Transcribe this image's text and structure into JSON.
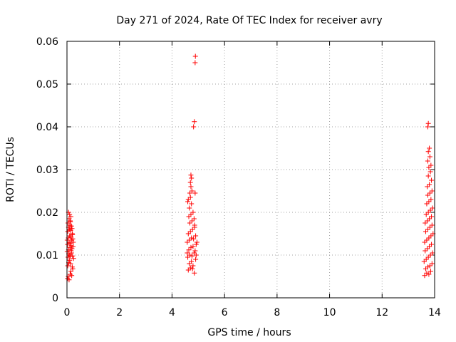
{
  "chart_data": {
    "type": "scatter",
    "title": "Day 271 of 2024, Rate Of TEC Index for receiver avry",
    "xlabel": "GPS time / hours",
    "ylabel": "ROTI / TECUs",
    "xlim": [
      0,
      14
    ],
    "ylim": [
      0,
      0.06
    ],
    "xticks": [
      0,
      2,
      4,
      6,
      8,
      10,
      12,
      14
    ],
    "xtick_labels": [
      "0",
      "2",
      "4",
      "6",
      "8",
      "10",
      "12",
      "14"
    ],
    "yticks": [
      0,
      0.01,
      0.02,
      0.03,
      0.04,
      0.05,
      0.06
    ],
    "ytick_labels": [
      "0",
      "0.01",
      "0.02",
      "0.03",
      "0.04",
      "0.05",
      "0.06"
    ],
    "grid": true,
    "marker": "+",
    "color": "#ff0000",
    "series": [
      {
        "points": [
          [
            0.02,
            0.0045
          ],
          [
            0.05,
            0.005
          ],
          [
            0.08,
            0.0042
          ],
          [
            0.12,
            0.0055
          ],
          [
            0.18,
            0.0052
          ],
          [
            0.15,
            0.0062
          ],
          [
            0.03,
            0.0075
          ],
          [
            0.07,
            0.0082
          ],
          [
            0.1,
            0.0088
          ],
          [
            0.14,
            0.008
          ],
          [
            0.2,
            0.0072
          ],
          [
            0.22,
            0.0068
          ],
          [
            0.04,
            0.0095
          ],
          [
            0.09,
            0.01
          ],
          [
            0.13,
            0.0097
          ],
          [
            0.17,
            0.0105
          ],
          [
            0.21,
            0.0098
          ],
          [
            0.01,
            0.0108
          ],
          [
            0.06,
            0.0112
          ],
          [
            0.11,
            0.0118
          ],
          [
            0.16,
            0.011
          ],
          [
            0.19,
            0.0115
          ],
          [
            0.23,
            0.012
          ],
          [
            0.02,
            0.0125
          ],
          [
            0.08,
            0.013
          ],
          [
            0.12,
            0.0128
          ],
          [
            0.18,
            0.0135
          ],
          [
            0.22,
            0.0138
          ],
          [
            0.05,
            0.014
          ],
          [
            0.1,
            0.0145
          ],
          [
            0.15,
            0.0142
          ],
          [
            0.2,
            0.015
          ],
          [
            0.03,
            0.0155
          ],
          [
            0.09,
            0.016
          ],
          [
            0.14,
            0.0158
          ],
          [
            0.21,
            0.0148
          ],
          [
            0.06,
            0.0165
          ],
          [
            0.11,
            0.017
          ],
          [
            0.17,
            0.0168
          ],
          [
            0.04,
            0.0175
          ],
          [
            0.12,
            0.018
          ],
          [
            0.08,
            0.0185
          ],
          [
            0.15,
            0.019
          ],
          [
            0.1,
            0.0195
          ],
          [
            0.06,
            0.02
          ],
          [
            0.13,
            0.0178
          ],
          [
            0.19,
            0.0162
          ],
          [
            0.24,
            0.013
          ],
          [
            0.01,
            0.0135
          ],
          [
            0.16,
            0.0122
          ],
          [
            0.07,
            0.0103
          ],
          [
            0.25,
            0.0092
          ]
        ]
      },
      {
        "points": [
          [
            4.62,
            0.0065
          ],
          [
            4.7,
            0.007
          ],
          [
            4.78,
            0.0068
          ],
          [
            4.85,
            0.0058
          ],
          [
            4.8,
            0.0075
          ],
          [
            4.66,
            0.008
          ],
          [
            4.74,
            0.0085
          ],
          [
            4.9,
            0.009
          ],
          [
            4.6,
            0.0095
          ],
          [
            4.68,
            0.01
          ],
          [
            4.76,
            0.0098
          ],
          [
            4.84,
            0.0105
          ],
          [
            4.88,
            0.011
          ],
          [
            4.64,
            0.0112
          ],
          [
            4.72,
            0.0118
          ],
          [
            4.8,
            0.012
          ],
          [
            4.92,
            0.0125
          ],
          [
            4.58,
            0.013
          ],
          [
            4.66,
            0.0135
          ],
          [
            4.74,
            0.014
          ],
          [
            4.82,
            0.0138
          ],
          [
            4.9,
            0.0145
          ],
          [
            4.62,
            0.015
          ],
          [
            4.7,
            0.0155
          ],
          [
            4.78,
            0.016
          ],
          [
            4.86,
            0.0165
          ],
          [
            4.68,
            0.0175
          ],
          [
            4.76,
            0.018
          ],
          [
            4.84,
            0.0185
          ],
          [
            4.64,
            0.019
          ],
          [
            4.72,
            0.0195
          ],
          [
            4.8,
            0.02
          ],
          [
            4.66,
            0.021
          ],
          [
            4.74,
            0.022
          ],
          [
            4.62,
            0.023
          ],
          [
            4.7,
            0.0235
          ],
          [
            4.68,
            0.0245
          ],
          [
            4.76,
            0.025
          ],
          [
            4.72,
            0.026
          ],
          [
            4.7,
            0.027
          ],
          [
            4.74,
            0.028
          ],
          [
            4.72,
            0.0287
          ],
          [
            4.88,
            0.0245
          ],
          [
            4.6,
            0.0225
          ],
          [
            4.86,
            0.017
          ],
          [
            4.92,
            0.01
          ],
          [
            4.58,
            0.0105
          ],
          [
            4.95,
            0.013
          ],
          [
            4.82,
            0.04
          ],
          [
            4.85,
            0.0412
          ],
          [
            4.88,
            0.055
          ],
          [
            4.89,
            0.0565
          ]
        ]
      },
      {
        "points": [
          [
            13.62,
            0.0052
          ],
          [
            13.7,
            0.0058
          ],
          [
            13.78,
            0.0055
          ],
          [
            13.85,
            0.0062
          ],
          [
            13.66,
            0.0068
          ],
          [
            13.74,
            0.0072
          ],
          [
            13.82,
            0.0075
          ],
          [
            13.9,
            0.008
          ],
          [
            13.6,
            0.0085
          ],
          [
            13.68,
            0.009
          ],
          [
            13.76,
            0.0095
          ],
          [
            13.84,
            0.01
          ],
          [
            13.92,
            0.0105
          ],
          [
            13.64,
            0.011
          ],
          [
            13.72,
            0.0115
          ],
          [
            13.8,
            0.012
          ],
          [
            13.88,
            0.0125
          ],
          [
            13.62,
            0.013
          ],
          [
            13.7,
            0.0135
          ],
          [
            13.78,
            0.014
          ],
          [
            13.86,
            0.0145
          ],
          [
            13.94,
            0.015
          ],
          [
            13.66,
            0.0155
          ],
          [
            13.74,
            0.016
          ],
          [
            13.82,
            0.0165
          ],
          [
            13.9,
            0.017
          ],
          [
            13.64,
            0.0175
          ],
          [
            13.72,
            0.018
          ],
          [
            13.8,
            0.0185
          ],
          [
            13.88,
            0.019
          ],
          [
            13.68,
            0.0195
          ],
          [
            13.76,
            0.02
          ],
          [
            13.84,
            0.0205
          ],
          [
            13.92,
            0.021
          ],
          [
            13.7,
            0.022
          ],
          [
            13.78,
            0.0225
          ],
          [
            13.86,
            0.023
          ],
          [
            13.74,
            0.024
          ],
          [
            13.82,
            0.0245
          ],
          [
            13.9,
            0.025
          ],
          [
            13.72,
            0.026
          ],
          [
            13.8,
            0.0265
          ],
          [
            13.88,
            0.0275
          ],
          [
            13.76,
            0.0285
          ],
          [
            13.84,
            0.0295
          ],
          [
            13.78,
            0.0305
          ],
          [
            13.86,
            0.031
          ],
          [
            13.74,
            0.032
          ],
          [
            13.82,
            0.033
          ],
          [
            13.76,
            0.0342
          ],
          [
            13.8,
            0.035
          ],
          [
            13.74,
            0.04
          ],
          [
            13.76,
            0.0408
          ]
        ]
      }
    ]
  }
}
